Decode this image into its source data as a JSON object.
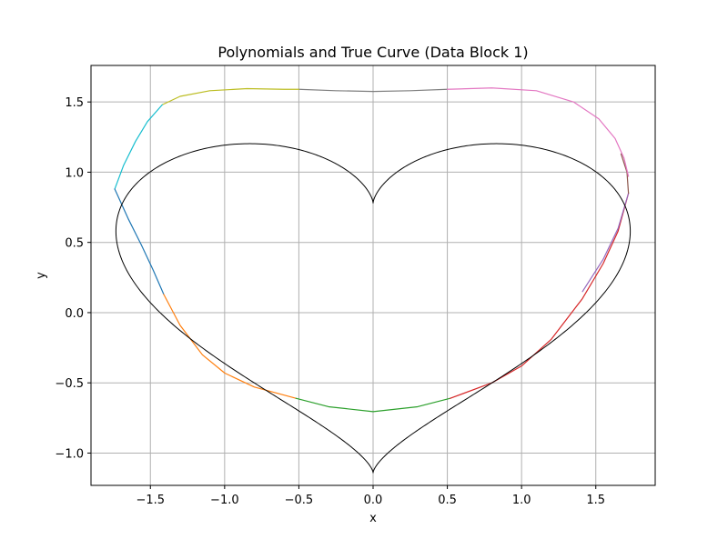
{
  "chart_data": {
    "type": "line",
    "title": "Polynomials and True Curve (Data Block 1)",
    "xlabel": "x",
    "ylabel": "y",
    "xlim": [
      -1.9,
      1.9
    ],
    "ylim": [
      -1.23,
      1.76
    ],
    "x_ticks": [
      -1.5,
      -1.0,
      -0.5,
      0.0,
      0.5,
      1.0,
      1.5
    ],
    "x_tick_labels": [
      "−1.5",
      "−1.0",
      "−0.5",
      "0.0",
      "0.5",
      "1.0",
      "1.5"
    ],
    "y_ticks": [
      -1.0,
      -0.5,
      0.0,
      0.5,
      1.0,
      1.5
    ],
    "y_tick_labels": [
      "−1.0",
      "−0.5",
      "0.0",
      "0.5",
      "1.0",
      "1.5"
    ],
    "grid": true,
    "series": [
      {
        "color": "#7f7f7f",
        "points": [
          [
            -0.5,
            1.59
          ],
          [
            -0.25,
            1.58
          ],
          [
            0,
            1.575
          ],
          [
            0.25,
            1.58
          ],
          [
            0.5,
            1.59
          ]
        ]
      },
      {
        "color": "#bcbd22",
        "points": [
          [
            -1.42,
            1.48
          ],
          [
            -1.3,
            1.54
          ],
          [
            -1.1,
            1.58
          ],
          [
            -0.85,
            1.595
          ],
          [
            -0.6,
            1.59
          ],
          [
            -0.5,
            1.59
          ]
        ]
      },
      {
        "color": "#17becf",
        "points": [
          [
            -1.74,
            0.88
          ],
          [
            -1.68,
            1.05
          ],
          [
            -1.6,
            1.22
          ],
          [
            -1.52,
            1.36
          ],
          [
            -1.42,
            1.48
          ]
        ]
      },
      {
        "color": "#1f77b4",
        "points": [
          [
            -1.74,
            0.88
          ],
          [
            -1.65,
            0.67
          ],
          [
            -1.56,
            0.48
          ],
          [
            -1.48,
            0.3
          ],
          [
            -1.41,
            0.13
          ]
        ]
      },
      {
        "color": "#ff7f0e",
        "points": [
          [
            -1.41,
            0.13
          ],
          [
            -1.3,
            -0.09
          ],
          [
            -1.15,
            -0.3
          ],
          [
            -1.0,
            -0.43
          ],
          [
            -0.8,
            -0.53
          ],
          [
            -0.52,
            -0.61
          ]
        ]
      },
      {
        "color": "#2ca02c",
        "points": [
          [
            -0.52,
            -0.61
          ],
          [
            -0.3,
            -0.67
          ],
          [
            0,
            -0.705
          ],
          [
            0.3,
            -0.67
          ],
          [
            0.52,
            -0.61
          ]
        ]
      },
      {
        "color": "#d62728",
        "points": [
          [
            0.52,
            -0.61
          ],
          [
            0.8,
            -0.5
          ],
          [
            1.0,
            -0.38
          ],
          [
            1.2,
            -0.19
          ],
          [
            1.41,
            0.1
          ],
          [
            1.55,
            0.35
          ],
          [
            1.65,
            0.58
          ],
          [
            1.72,
            0.85
          ]
        ]
      },
      {
        "color": "#9467bd",
        "points": [
          [
            1.41,
            0.15
          ],
          [
            1.55,
            0.38
          ],
          [
            1.65,
            0.6
          ],
          [
            1.72,
            0.85
          ]
        ]
      },
      {
        "color": "#8c564b",
        "points": [
          [
            1.72,
            0.85
          ],
          [
            1.71,
            1.0
          ],
          [
            1.67,
            1.13
          ]
        ]
      },
      {
        "color": "#e377c2",
        "points": [
          [
            0.5,
            1.59
          ],
          [
            0.8,
            1.6
          ],
          [
            1.1,
            1.58
          ],
          [
            1.35,
            1.5
          ],
          [
            1.52,
            1.38
          ],
          [
            1.63,
            1.24
          ],
          [
            1.69,
            1.1
          ],
          [
            1.72,
            0.97
          ]
        ]
      },
      {
        "color": "#000000",
        "role": "true-curve",
        "equation": "x = sqrt(3)*sin(t)^3, y = cos(t) - 0.3*cos(2t) - 0.2*cos(3t) + 0.2 + 0.65*... (heart curve)",
        "points": []
      }
    ]
  }
}
